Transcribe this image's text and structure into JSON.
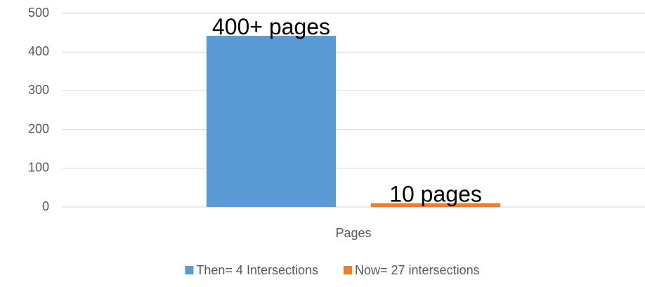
{
  "chart_data": {
    "type": "bar",
    "categories": [
      "Pages"
    ],
    "series": [
      {
        "name": "Then= 4 Intersections",
        "color": "#5b9bd5",
        "values": [
          442
        ],
        "value_labels": [
          "400+ pages"
        ]
      },
      {
        "name": "Now= 27 intersections",
        "color": "#ed7d31",
        "values": [
          10
        ],
        "value_labels": [
          "10 pages"
        ]
      }
    ],
    "ylim": [
      0,
      500
    ],
    "yticks": [
      0,
      100,
      200,
      300,
      400,
      500
    ],
    "grid": true,
    "legend": "bottom"
  }
}
